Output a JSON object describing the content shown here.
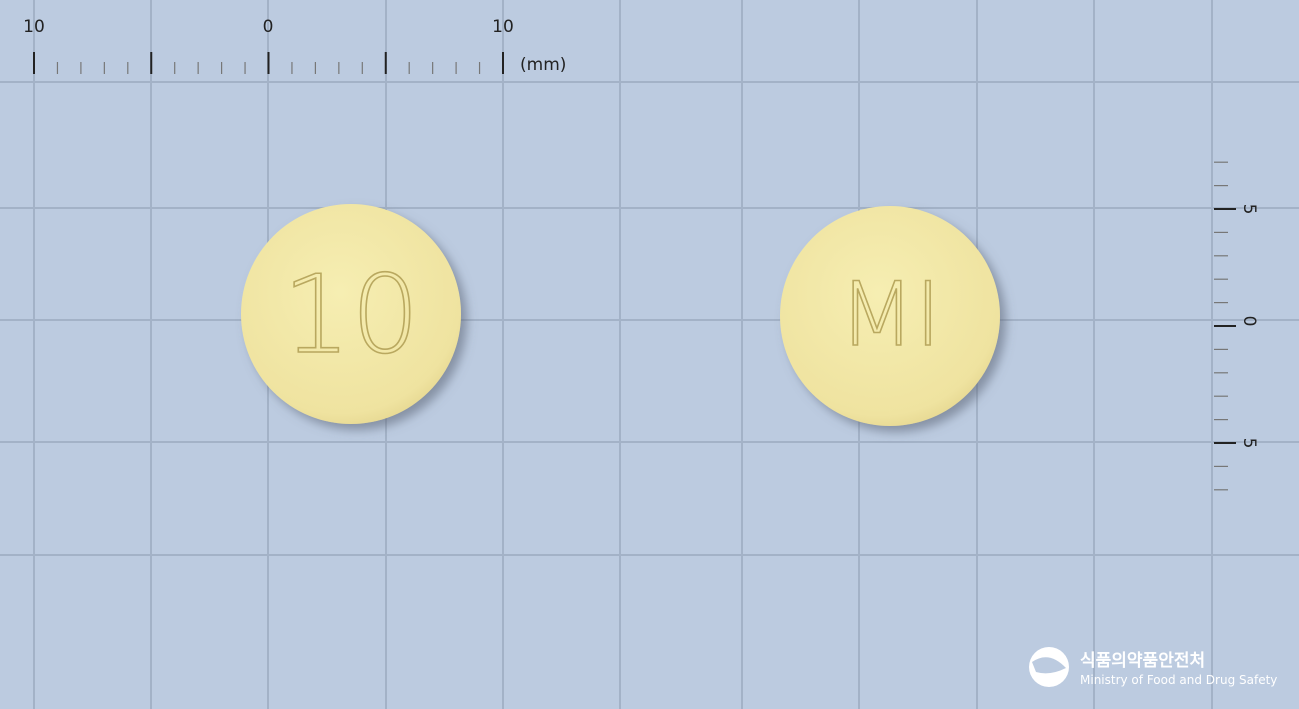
{
  "ruler_top": {
    "labels": [
      "10",
      "0",
      "10"
    ],
    "unit": "(mm)"
  },
  "ruler_right": {
    "labels": [
      "5",
      "0",
      "5"
    ]
  },
  "pills": [
    {
      "imprint": "10"
    },
    {
      "imprint": "MI"
    }
  ],
  "logo": {
    "korean": "식품의약품안전처",
    "english": "Ministry of Food and Drug Safety"
  }
}
